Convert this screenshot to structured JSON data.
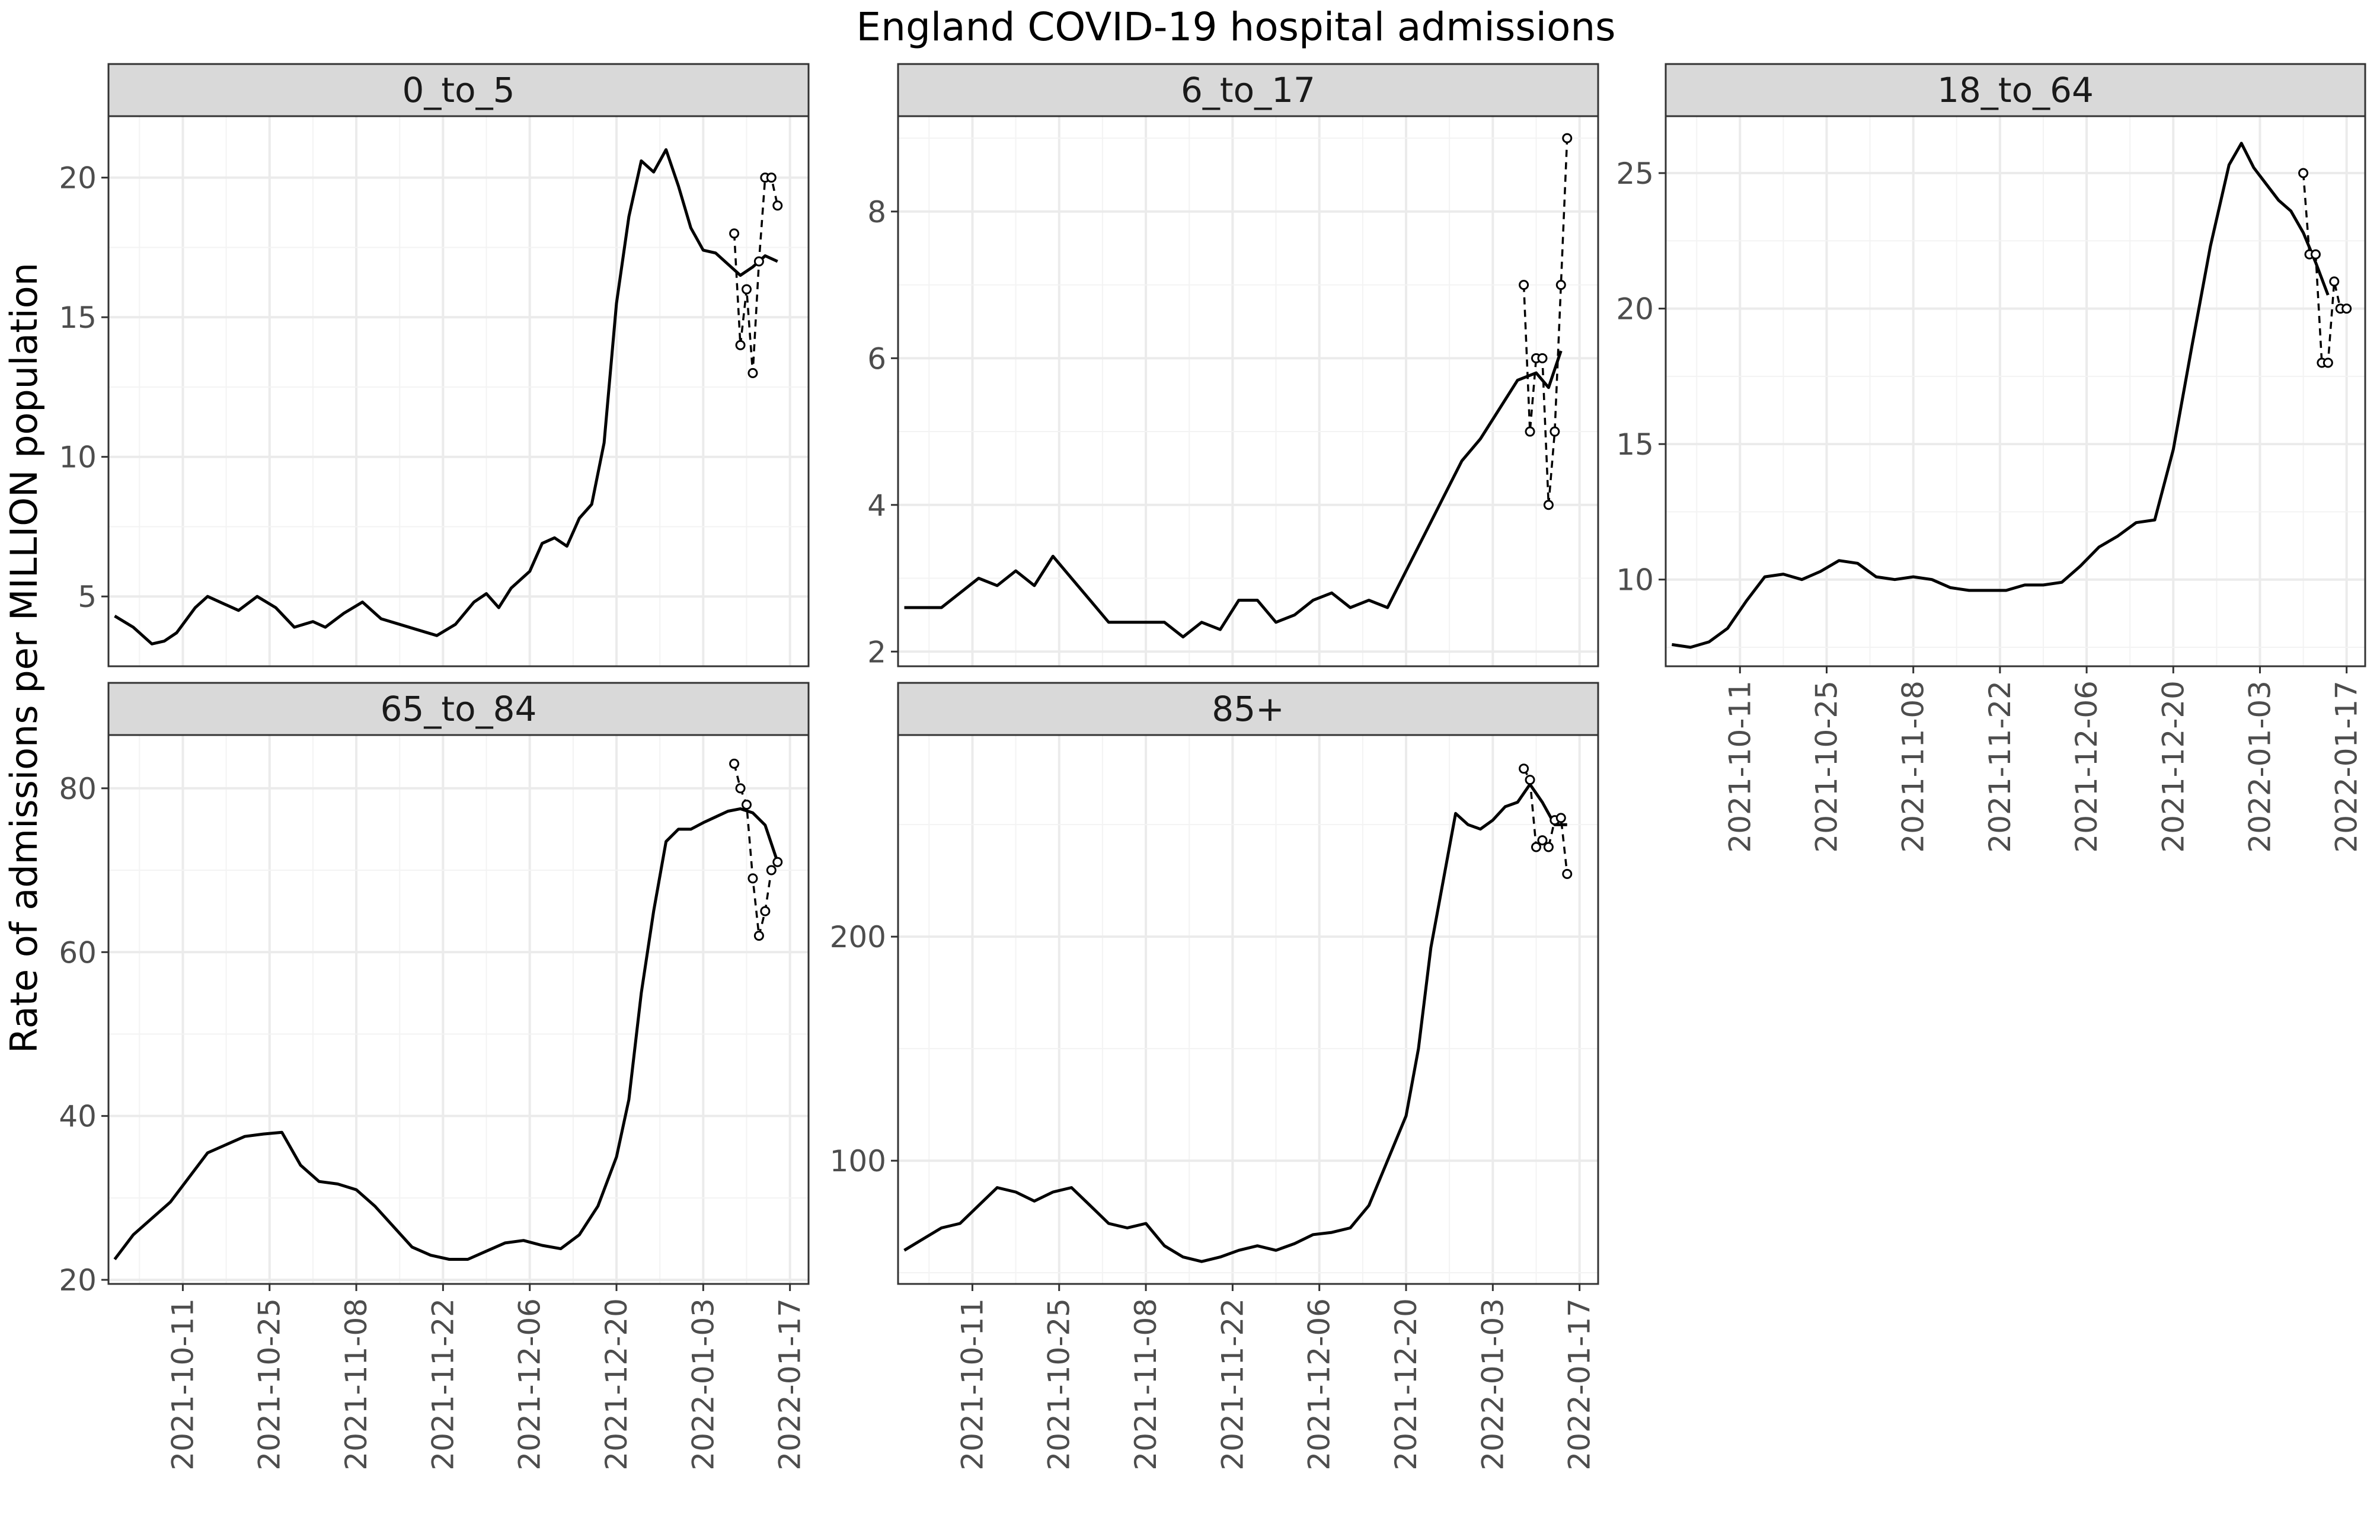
{
  "title": "England COVID-19 hospital admissions",
  "ylabel": "Rate of admissions per MILLION population",
  "chart_data": {
    "type": "line",
    "facet_layout": "3 columns x 2 rows, free y scales, shared x",
    "title": "England COVID-19 hospital admissions",
    "xlabel": "",
    "ylabel": "Rate of admissions per MILLION population",
    "xlim": [
      "2021-09-29",
      "2022-01-20"
    ],
    "x_ticks": [
      "2021-10-11",
      "2021-10-25",
      "2021-11-08",
      "2021-11-22",
      "2021-12-06",
      "2021-12-20",
      "2022-01-03",
      "2022-01-17"
    ],
    "grid": true,
    "series_styles": {
      "smoothed": "solid black line",
      "daily": "dashed black line with open circles"
    },
    "panels": [
      {
        "label": "0_to_5",
        "ylim": [
          2.5,
          22.2
        ],
        "y_ticks": [
          5,
          10,
          15,
          20
        ],
        "smoothed": {
          "x": [
            "2021-09-30",
            "2021-10-03",
            "2021-10-06",
            "2021-10-08",
            "2021-10-10",
            "2021-10-13",
            "2021-10-15",
            "2021-10-17",
            "2021-10-20",
            "2021-10-23",
            "2021-10-26",
            "2021-10-29",
            "2021-11-01",
            "2021-11-03",
            "2021-11-06",
            "2021-11-09",
            "2021-11-12",
            "2021-11-15",
            "2021-11-18",
            "2021-11-21",
            "2021-11-24",
            "2021-11-27",
            "2021-11-29",
            "2021-12-01",
            "2021-12-03",
            "2021-12-06",
            "2021-12-08",
            "2021-12-10",
            "2021-12-12",
            "2021-12-14",
            "2021-12-16",
            "2021-12-18",
            "2021-12-20",
            "2021-12-22",
            "2021-12-24",
            "2021-12-26",
            "2021-12-28",
            "2021-12-30",
            "2022-01-01",
            "2022-01-03",
            "2022-01-05",
            "2022-01-07",
            "2022-01-09",
            "2022-01-11",
            "2022-01-13",
            "2022-01-15"
          ],
          "y": [
            4.3,
            3.9,
            3.3,
            3.4,
            3.7,
            4.6,
            5.0,
            4.8,
            4.5,
            5.0,
            4.6,
            3.9,
            4.1,
            3.9,
            4.4,
            4.8,
            4.2,
            4.0,
            3.8,
            3.6,
            4.0,
            4.8,
            5.1,
            4.6,
            5.3,
            5.9,
            6.9,
            7.1,
            6.8,
            7.8,
            8.3,
            10.5,
            15.5,
            18.6,
            20.6,
            20.2,
            21.0,
            19.7,
            18.2,
            17.4,
            17.3,
            16.9,
            16.5,
            16.8,
            17.2,
            17.0
          ]
        },
        "daily": {
          "x": [
            "2022-01-08",
            "2022-01-09",
            "2022-01-10",
            "2022-01-11",
            "2022-01-12",
            "2022-01-13",
            "2022-01-14",
            "2022-01-15"
          ],
          "y": [
            18,
            14,
            16,
            13,
            17,
            20,
            20,
            19
          ]
        }
      },
      {
        "label": "6_to_17",
        "ylim": [
          1.8,
          9.3
        ],
        "y_ticks": [
          2,
          4,
          6,
          8
        ],
        "smoothed": {
          "x": [
            "2021-09-30",
            "2021-10-03",
            "2021-10-06",
            "2021-10-09",
            "2021-10-12",
            "2021-10-15",
            "2021-10-18",
            "2021-10-21",
            "2021-10-24",
            "2021-10-27",
            "2021-10-30",
            "2021-11-02",
            "2021-11-05",
            "2021-11-08",
            "2021-11-11",
            "2021-11-14",
            "2021-11-17",
            "2021-11-20",
            "2021-11-23",
            "2021-11-26",
            "2021-11-29",
            "2021-12-02",
            "2021-12-05",
            "2021-12-08",
            "2021-12-11",
            "2021-12-14",
            "2021-12-17",
            "2021-12-20",
            "2021-12-23",
            "2021-12-26",
            "2021-12-29",
            "2022-01-01",
            "2022-01-04",
            "2022-01-07",
            "2022-01-10",
            "2022-01-12",
            "2022-01-14"
          ],
          "y": [
            2.6,
            2.6,
            2.6,
            2.8,
            3.0,
            2.9,
            3.1,
            2.9,
            3.3,
            3.0,
            2.7,
            2.4,
            2.4,
            2.4,
            2.4,
            2.2,
            2.4,
            2.3,
            2.7,
            2.7,
            2.4,
            2.5,
            2.7,
            2.8,
            2.6,
            2.7,
            2.6,
            3.1,
            3.6,
            4.1,
            4.6,
            4.9,
            5.3,
            5.7,
            5.8,
            5.6,
            6.1
          ]
        },
        "daily": {
          "x": [
            "2022-01-08",
            "2022-01-09",
            "2022-01-10",
            "2022-01-11",
            "2022-01-12",
            "2022-01-13",
            "2022-01-14",
            "2022-01-15"
          ],
          "y": [
            7,
            5,
            6,
            6,
            4,
            5,
            7,
            9
          ]
        }
      },
      {
        "label": "18_to_64",
        "ylim": [
          6.8,
          27.1
        ],
        "y_ticks": [
          10,
          15,
          20,
          25
        ],
        "smoothed": {
          "x": [
            "2021-09-30",
            "2021-10-03",
            "2021-10-06",
            "2021-10-09",
            "2021-10-12",
            "2021-10-15",
            "2021-10-18",
            "2021-10-21",
            "2021-10-24",
            "2021-10-27",
            "2021-10-30",
            "2021-11-02",
            "2021-11-05",
            "2021-11-08",
            "2021-11-11",
            "2021-11-14",
            "2021-11-17",
            "2021-11-20",
            "2021-11-23",
            "2021-11-26",
            "2021-11-29",
            "2021-12-02",
            "2021-12-05",
            "2021-12-08",
            "2021-12-11",
            "2021-12-14",
            "2021-12-17",
            "2021-12-20",
            "2021-12-23",
            "2021-12-26",
            "2021-12-29",
            "2021-12-31",
            "2022-01-02",
            "2022-01-04",
            "2022-01-06",
            "2022-01-08",
            "2022-01-10",
            "2022-01-12",
            "2022-01-14"
          ],
          "y": [
            7.6,
            7.5,
            7.7,
            8.2,
            9.2,
            10.1,
            10.2,
            10.0,
            10.3,
            10.7,
            10.6,
            10.1,
            10.0,
            10.1,
            10.0,
            9.7,
            9.6,
            9.6,
            9.6,
            9.8,
            9.8,
            9.9,
            10.5,
            11.2,
            11.6,
            12.1,
            12.2,
            14.8,
            18.6,
            22.3,
            25.3,
            26.1,
            25.2,
            24.6,
            24.0,
            23.6,
            22.8,
            21.7,
            20.5
          ]
        },
        "daily": {
          "x": [
            "2022-01-10",
            "2022-01-11",
            "2022-01-12",
            "2022-01-13",
            "2022-01-14",
            "2022-01-15",
            "2022-01-16",
            "2022-01-17"
          ],
          "y": [
            25,
            22,
            22,
            18,
            18,
            21,
            20,
            20
          ]
        }
      },
      {
        "label": "65_to_84",
        "ylim": [
          19.5,
          86.5
        ],
        "y_ticks": [
          20,
          40,
          60,
          80
        ],
        "smoothed": {
          "x": [
            "2021-09-30",
            "2021-10-03",
            "2021-10-06",
            "2021-10-09",
            "2021-10-12",
            "2021-10-15",
            "2021-10-18",
            "2021-10-21",
            "2021-10-24",
            "2021-10-27",
            "2021-10-30",
            "2021-11-02",
            "2021-11-05",
            "2021-11-08",
            "2021-11-11",
            "2021-11-14",
            "2021-11-17",
            "2021-11-20",
            "2021-11-23",
            "2021-11-26",
            "2021-11-29",
            "2021-12-02",
            "2021-12-05",
            "2021-12-08",
            "2021-12-11",
            "2021-12-14",
            "2021-12-17",
            "2021-12-20",
            "2021-12-22",
            "2021-12-24",
            "2021-12-26",
            "2021-12-28",
            "2021-12-30",
            "2022-01-01",
            "2022-01-03",
            "2022-01-05",
            "2022-01-07",
            "2022-01-09",
            "2022-01-11",
            "2022-01-13",
            "2022-01-15"
          ],
          "y": [
            22.5,
            25.5,
            27.5,
            29.5,
            32.5,
            35.5,
            36.5,
            37.5,
            37.8,
            38.0,
            34.0,
            32.0,
            31.7,
            31.0,
            29.0,
            26.5,
            24.0,
            23.0,
            22.5,
            22.5,
            23.5,
            24.5,
            24.8,
            24.2,
            23.8,
            25.5,
            29.0,
            35.0,
            42.0,
            55.0,
            65.0,
            73.5,
            75.0,
            75.0,
            75.8,
            76.5,
            77.2,
            77.5,
            77.0,
            75.5,
            71.0
          ]
        },
        "daily": {
          "x": [
            "2022-01-08",
            "2022-01-09",
            "2022-01-10",
            "2022-01-11",
            "2022-01-12",
            "2022-01-13",
            "2022-01-14",
            "2022-01-15"
          ],
          "y": [
            83,
            80,
            78,
            69,
            62,
            65,
            70,
            71
          ]
        }
      },
      {
        "label": "85+",
        "ylim": [
          45,
          290
        ],
        "y_ticks": [
          100,
          200
        ],
        "smoothed": {
          "x": [
            "2021-09-30",
            "2021-10-03",
            "2021-10-06",
            "2021-10-09",
            "2021-10-12",
            "2021-10-15",
            "2021-10-18",
            "2021-10-21",
            "2021-10-24",
            "2021-10-27",
            "2021-10-30",
            "2021-11-02",
            "2021-11-05",
            "2021-11-08",
            "2021-11-11",
            "2021-11-14",
            "2021-11-17",
            "2021-11-20",
            "2021-11-23",
            "2021-11-26",
            "2021-11-29",
            "2021-12-02",
            "2021-12-05",
            "2021-12-08",
            "2021-12-11",
            "2021-12-14",
            "2021-12-17",
            "2021-12-20",
            "2021-12-22",
            "2021-12-24",
            "2021-12-26",
            "2021-12-28",
            "2021-12-30",
            "2022-01-01",
            "2022-01-03",
            "2022-01-05",
            "2022-01-07",
            "2022-01-09",
            "2022-01-11",
            "2022-01-13",
            "2022-01-15"
          ],
          "y": [
            60,
            65,
            70,
            72,
            80,
            88,
            86,
            82,
            86,
            88,
            80,
            72,
            70,
            72,
            62,
            57,
            55,
            57,
            60,
            62,
            60,
            63,
            67,
            68,
            70,
            80,
            100,
            120,
            150,
            195,
            225,
            255,
            250,
            248,
            252,
            258,
            260,
            268,
            260,
            250,
            250
          ]
        },
        "daily": {
          "x": [
            "2022-01-08",
            "2022-01-09",
            "2022-01-10",
            "2022-01-11",
            "2022-01-12",
            "2022-01-13",
            "2022-01-14",
            "2022-01-15"
          ],
          "y": [
            275,
            270,
            240,
            243,
            240,
            252,
            253,
            228
          ]
        }
      }
    ]
  }
}
